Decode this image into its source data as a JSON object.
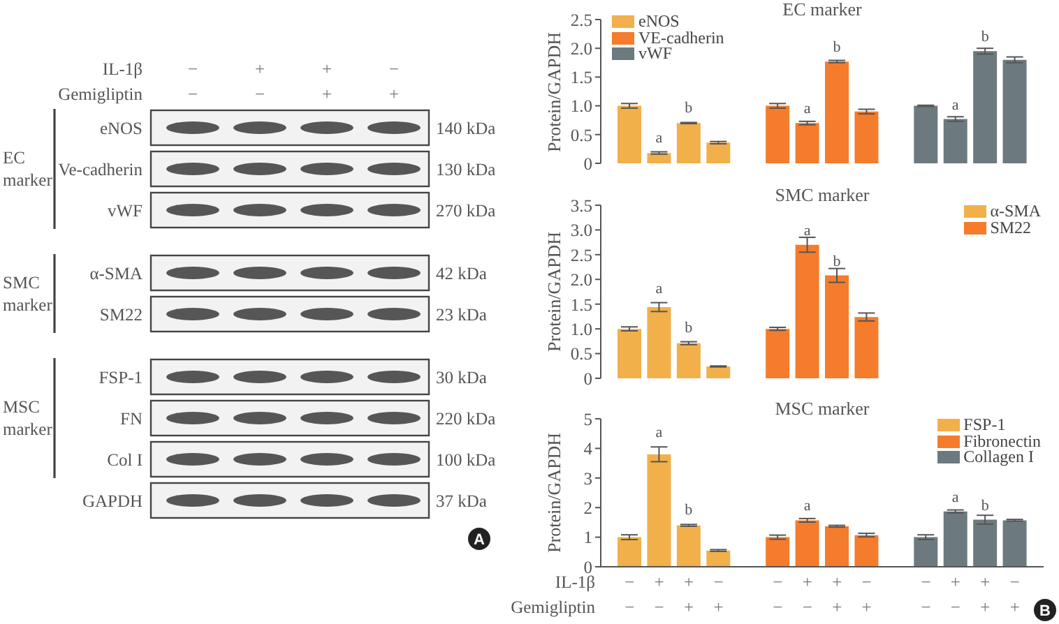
{
  "chart_data": [
    {
      "type": "other",
      "categories": [
        "−\n−",
        "+\n−",
        "+\n+",
        "−\n+"
      ],
      "y_categories": [
        "eNOS",
        "Ve-cadherin",
        "vWF",
        "α-SMA",
        "SM22",
        "FSP-1",
        "FN",
        "Col I",
        "GAPDH"
      ],
      "y2_categories": [
        "140 kDa",
        "130 kDa",
        "270 kDa",
        "42 kDa",
        "23 kDa",
        "30 kDa",
        "220 kDa",
        "100 kDa",
        "37 kDa"
      ],
      "annotations": [
        "IL-1β",
        "Gemigliptin",
        "EC marker",
        "SMC marker",
        "MSC marker",
        "A"
      ]
    },
    {
      "type": "bar",
      "title": "EC marker",
      "ylabel": "Protein/GAPDH",
      "categories": [
        "−\n−",
        "+\n−",
        "+\n+",
        "−\n+",
        null,
        "−\n−",
        "+\n−",
        "+\n+",
        "−\n+",
        null,
        "−\n−",
        "+\n−",
        "+\n+",
        "−\n+"
      ],
      "series": [
        {
          "name": "eNOS",
          "color": "#f2b04b",
          "values": [
            1.0,
            0.18,
            0.7,
            0.36,
            null,
            null,
            null,
            null,
            null,
            null,
            null,
            null,
            null,
            null
          ],
          "errors": [
            0.04,
            0.02,
            0.01,
            0.02,
            null,
            null,
            null,
            null,
            null,
            null,
            null,
            null,
            null,
            null
          ],
          "value_labels": [
            null,
            "a",
            "b",
            null,
            null,
            null,
            null,
            null,
            null,
            null,
            null,
            null,
            null,
            null
          ]
        },
        {
          "name": "VE-cadherin",
          "color": "#f47c2c",
          "values": [
            null,
            null,
            null,
            null,
            null,
            1.0,
            0.7,
            1.77,
            0.9,
            null,
            null,
            null,
            null,
            null
          ],
          "errors": [
            null,
            null,
            null,
            null,
            null,
            0.04,
            0.03,
            0.02,
            0.04,
            null,
            null,
            null,
            null,
            null
          ],
          "value_labels": [
            null,
            null,
            null,
            null,
            null,
            null,
            "a",
            "b",
            null,
            null,
            null,
            null,
            null,
            null
          ]
        },
        {
          "name": "vWF",
          "color": "#6c7a7f",
          "values": [
            null,
            null,
            null,
            null,
            null,
            null,
            null,
            null,
            null,
            null,
            1.0,
            0.77,
            1.95,
            1.8
          ],
          "errors": [
            null,
            null,
            null,
            null,
            null,
            null,
            null,
            null,
            null,
            null,
            0.01,
            0.04,
            0.05,
            0.05
          ],
          "value_labels": [
            null,
            null,
            null,
            null,
            null,
            null,
            null,
            null,
            null,
            null,
            null,
            "a",
            "b",
            null
          ]
        }
      ],
      "ylim": [
        0,
        2.5
      ],
      "yticks": [
        0,
        0.5,
        {
          "value": 1,
          "label": "1.0"
        },
        1.5,
        {
          "value": 2,
          "label": "2.0"
        },
        2.5
      ],
      "legend": "top left",
      "tick_labels": "y"
    },
    {
      "type": "bar",
      "title": "SMC marker",
      "ylabel": "Protein/GAPDH",
      "categories": [
        "−\n−",
        "+\n−",
        "+\n+",
        "−\n+",
        null,
        "−\n−",
        "+\n−",
        "+\n+",
        "−\n+",
        null,
        "−\n−",
        "+\n−",
        "+\n+",
        "−\n+"
      ],
      "series": [
        {
          "name": "α-SMA",
          "color": "#f2b04b",
          "values": [
            1.0,
            1.44,
            0.71,
            0.24,
            null,
            null,
            null,
            null,
            null,
            null,
            null,
            null,
            null,
            null
          ],
          "errors": [
            0.04,
            0.09,
            0.03,
            0.01,
            null,
            null,
            null,
            null,
            null,
            null,
            null,
            null,
            null,
            null
          ],
          "value_labels": [
            null,
            "a",
            "b",
            null,
            null,
            null,
            null,
            null,
            null,
            null,
            null,
            null,
            null,
            null
          ]
        },
        {
          "name": "SM22",
          "color": "#f47c2c",
          "values": [
            null,
            null,
            null,
            null,
            null,
            1.0,
            2.7,
            2.08,
            1.24,
            null,
            null,
            null,
            null,
            null
          ],
          "errors": [
            null,
            null,
            null,
            null,
            null,
            0.03,
            0.15,
            0.14,
            0.08,
            null,
            null,
            null,
            null,
            null
          ],
          "value_labels": [
            null,
            null,
            null,
            null,
            null,
            null,
            "a",
            "b",
            null,
            null,
            null,
            null,
            null,
            null
          ]
        }
      ],
      "ylim": [
        0,
        3.5
      ],
      "yticks": [
        0,
        0.5,
        {
          "value": 1,
          "label": "1.0"
        },
        1.5,
        {
          "value": 2,
          "label": "2.0"
        },
        2.5,
        {
          "value": 3,
          "label": "3.0"
        },
        3.5
      ],
      "legend": "top right",
      "tick_labels": "y"
    },
    {
      "type": "bar",
      "title": "MSC marker",
      "ylabel": "Protein/GAPDH",
      "categories": [
        "−\n−",
        "+\n−",
        "+\n+",
        "−\n+",
        null,
        "−\n−",
        "+\n−",
        "+\n+",
        "−\n+",
        null,
        "−\n−",
        "+\n−",
        "+\n+",
        "−\n+"
      ],
      "series": [
        {
          "name": "FSP-1",
          "color": "#f2b04b",
          "values": [
            1.0,
            3.8,
            1.4,
            0.55,
            null,
            null,
            null,
            null,
            null,
            null,
            null,
            null,
            null,
            null
          ],
          "errors": [
            0.08,
            0.25,
            0.03,
            0.03,
            null,
            null,
            null,
            null,
            null,
            null,
            null,
            null,
            null,
            null
          ],
          "value_labels": [
            null,
            "a",
            "b",
            null,
            null,
            null,
            null,
            null,
            null,
            null,
            null,
            null,
            null,
            null
          ]
        },
        {
          "name": "Fibronectin",
          "color": "#f47c2c",
          "values": [
            null,
            null,
            null,
            null,
            null,
            1.0,
            1.57,
            1.37,
            1.07,
            null,
            null,
            null,
            null,
            null
          ],
          "errors": [
            null,
            null,
            null,
            null,
            null,
            0.07,
            0.06,
            0.03,
            0.06,
            null,
            null,
            null,
            null,
            null
          ],
          "value_labels": [
            null,
            null,
            null,
            null,
            null,
            null,
            "a",
            null,
            null,
            null,
            null,
            null,
            null,
            null
          ]
        },
        {
          "name": "Collagen I",
          "color": "#6c7a7f",
          "values": [
            null,
            null,
            null,
            null,
            null,
            null,
            null,
            null,
            null,
            null,
            1.0,
            1.87,
            1.59,
            1.57
          ],
          "errors": [
            null,
            null,
            null,
            null,
            null,
            null,
            null,
            null,
            null,
            null,
            0.08,
            0.05,
            0.15,
            0.03
          ],
          "value_labels": [
            null,
            null,
            null,
            null,
            null,
            null,
            null,
            null,
            null,
            null,
            null,
            "a",
            "b",
            null
          ]
        }
      ],
      "ylim": [
        0,
        5
      ],
      "yticks": [
        0,
        1,
        2,
        3,
        4,
        5
      ],
      "legend": "top right",
      "annotations": [
        "IL-1β",
        "Gemigliptin",
        "B"
      ]
    }
  ]
}
